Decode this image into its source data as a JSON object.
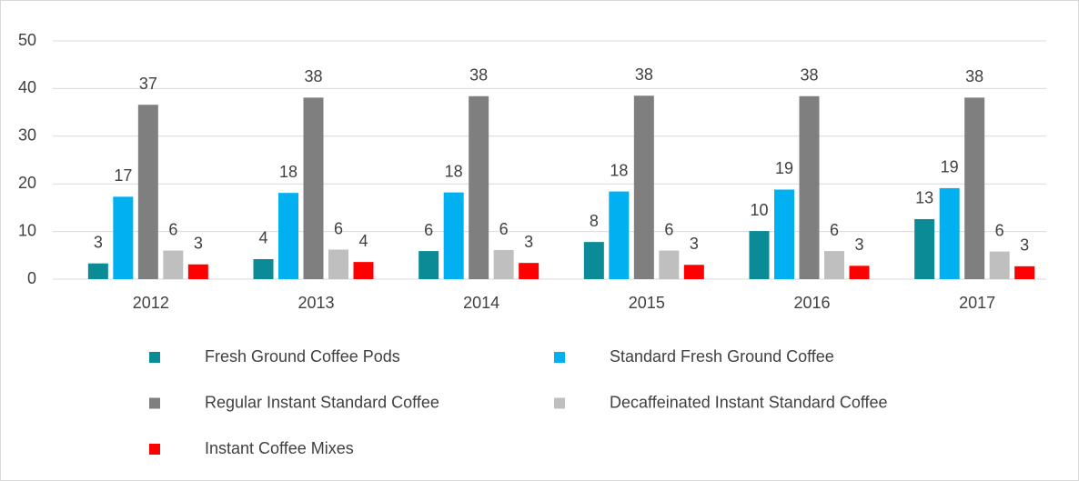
{
  "chart_data": {
    "type": "bar",
    "categories": [
      "2012",
      "2013",
      "2014",
      "2015",
      "2016",
      "2017"
    ],
    "series": [
      {
        "name": "Fresh Ground Coffee Pods",
        "color": "#0b8b96",
        "values": [
          3.3,
          4.2,
          5.9,
          7.8,
          10.1,
          12.6
        ],
        "value_labels": [
          "3",
          "4",
          "6",
          "8",
          "10",
          "13"
        ]
      },
      {
        "name": "Standard Fresh Ground Coffee",
        "color": "#00b0f0",
        "values": [
          17.3,
          18.1,
          18.2,
          18.4,
          18.8,
          19.1
        ],
        "value_labels": [
          "17",
          "18",
          "18",
          "18",
          "19",
          "19"
        ]
      },
      {
        "name": "Regular Instant Standard Coffee",
        "color": "#7f7f7f",
        "values": [
          36.6,
          38.1,
          38.4,
          38.5,
          38.4,
          38.1
        ],
        "value_labels": [
          "37",
          "38",
          "38",
          "38",
          "38",
          "38"
        ]
      },
      {
        "name": "Decaffeinated Instant Standard Coffee",
        "color": "#bfbfbf",
        "values": [
          6.0,
          6.2,
          6.1,
          6.0,
          5.9,
          5.8
        ],
        "value_labels": [
          "6",
          "6",
          "6",
          "6",
          "6",
          "6"
        ]
      },
      {
        "name": "Instant Coffee Mixes",
        "color": "#ff0000",
        "values": [
          3.1,
          3.6,
          3.4,
          3.0,
          2.8,
          2.7
        ],
        "value_labels": [
          "3",
          "4",
          "3",
          "3",
          "3",
          "3"
        ]
      }
    ],
    "ylim": [
      0,
      50
    ],
    "yticks": [
      0,
      10,
      20,
      30,
      40,
      50
    ],
    "grid": true,
    "legend": "bottom"
  }
}
